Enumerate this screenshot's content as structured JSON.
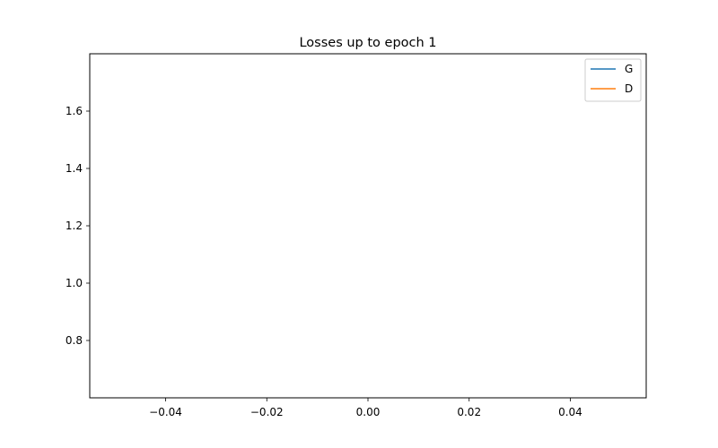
{
  "chart_data": {
    "type": "line",
    "title": "Losses up to epoch 1",
    "xlabel": "",
    "ylabel": "",
    "xlim": [
      -0.055,
      0.055
    ],
    "ylim": [
      0.6,
      1.8
    ],
    "xticks": [
      -0.04,
      -0.02,
      0.0,
      0.02,
      0.04
    ],
    "xtick_labels": [
      "−0.04",
      "−0.02",
      "0.00",
      "0.02",
      "0.04"
    ],
    "yticks": [
      0.8,
      1.0,
      1.2,
      1.4,
      1.6
    ],
    "ytick_labels": [
      "0.8",
      "1.0",
      "1.2",
      "1.4",
      "1.6"
    ],
    "grid": false,
    "legend_position": "top-right",
    "series": [
      {
        "name": "G",
        "color": "#1f77b4",
        "x": [],
        "y": []
      },
      {
        "name": "D",
        "color": "#ff7f0e",
        "x": [],
        "y": []
      }
    ]
  }
}
